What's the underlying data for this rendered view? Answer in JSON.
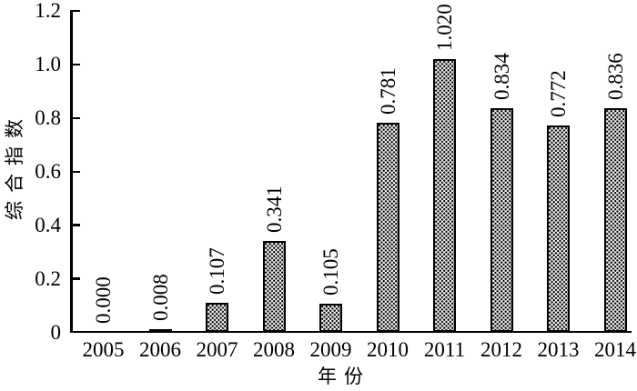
{
  "chart_data": {
    "type": "bar",
    "title": "",
    "categories": [
      "2005",
      "2006",
      "2007",
      "2008",
      "2009",
      "2010",
      "2011",
      "2012",
      "2013",
      "2014"
    ],
    "values": [
      0.0,
      0.008,
      0.107,
      0.341,
      0.105,
      0.781,
      1.02,
      0.834,
      0.772,
      0.836
    ],
    "value_labels": [
      "0.000",
      "0.008",
      "0.107",
      "0.341",
      "0.105",
      "0.781",
      "1.020",
      "0.834",
      "0.772",
      "0.836"
    ],
    "xlabel": "年份",
    "ylabel": "综合指数",
    "ylim": [
      0,
      1.2
    ],
    "ytick_values": [
      0,
      0.2,
      0.4,
      0.6,
      0.8,
      1.0,
      1.2
    ],
    "ytick_labels": [
      "0",
      "0.2",
      "0.4",
      "0.6",
      "0.8",
      "1.0",
      "1.2"
    ],
    "grid": false,
    "legend": "none",
    "value_label_orientation": "rotated-90-ccw",
    "bar_fill": "dot-stipple-pattern",
    "bar_border_color": "#000000",
    "axis_color": "#000000",
    "background": "#ffffff"
  }
}
